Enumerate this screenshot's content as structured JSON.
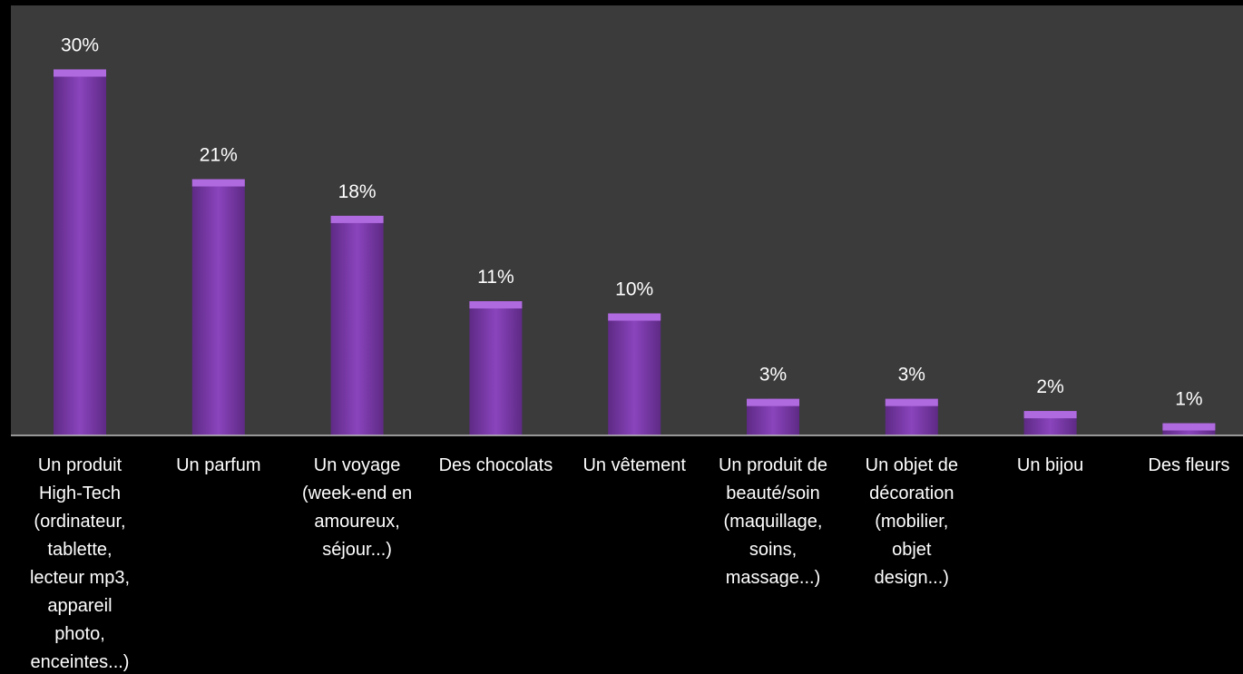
{
  "chart_data": {
    "type": "bar",
    "categories": [
      "Un produit\nHigh-Tech\n(ordinateur,\ntablette,\nlecteur mp3,\nappareil\nphoto,\nenceintes...)",
      "Un parfum",
      "Un voyage\n(week-end en\namoureux,\nséjour...)",
      "Des chocolats",
      "Un vêtement",
      "Un produit de\nbeauté/soin\n(maquillage,\nsoins,\nmassage...)",
      "Un objet de\ndécoration\n(mobilier,\nobjet\ndesign...)",
      "Un bijou",
      "Des fleurs"
    ],
    "values": [
      30,
      21,
      18,
      11,
      10,
      3,
      3,
      2,
      1
    ],
    "value_labels": [
      "30%",
      "21%",
      "18%",
      "11%",
      "10%",
      "3%",
      "3%",
      "2%",
      "1%"
    ],
    "ylim": [
      0,
      35
    ],
    "grid": false,
    "colors": {
      "bar": "#7d3aab",
      "bar_top": "#b06ae0",
      "plot_background": "#3b3b3b",
      "page_background": "#000000",
      "text": "#ffffff"
    }
  }
}
